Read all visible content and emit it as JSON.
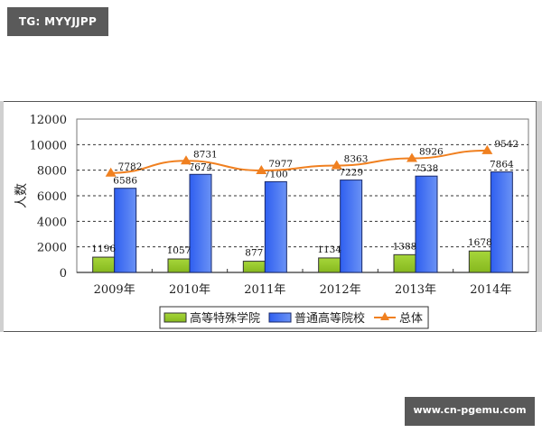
{
  "badges": {
    "top_left": "TG: MYYJJPP",
    "bottom_right": "www.cn-pgemu.com"
  },
  "colors": {
    "green_bar": "#9acd32",
    "blue_bar": "#3a6ef0",
    "line": "#f08020",
    "grid": "#333333"
  },
  "chart_data": {
    "type": "bar",
    "title": "",
    "xlabel": "",
    "ylabel": "人数",
    "ylim": [
      0,
      12000
    ],
    "yticks": [
      0,
      2000,
      4000,
      6000,
      8000,
      10000,
      12000
    ],
    "grid": true,
    "legend_position": "bottom",
    "categories": [
      "2009年",
      "2010年",
      "2011年",
      "2012年",
      "2013年",
      "2014年"
    ],
    "series": [
      {
        "name": "高等特殊学院",
        "type": "bar",
        "values": [
          1196,
          1057,
          877,
          1134,
          1388,
          1678
        ]
      },
      {
        "name": "普通高等院校",
        "type": "bar",
        "values": [
          6586,
          7674,
          7100,
          7229,
          7538,
          7864
        ]
      },
      {
        "name": "总体",
        "type": "line",
        "marker": "triangle",
        "values": [
          7782,
          8731,
          7977,
          8363,
          8926,
          9542
        ]
      }
    ]
  },
  "legend": {
    "items": [
      {
        "label": "高等特殊学院"
      },
      {
        "label": "普通高等院校"
      },
      {
        "label": "总体"
      }
    ]
  }
}
